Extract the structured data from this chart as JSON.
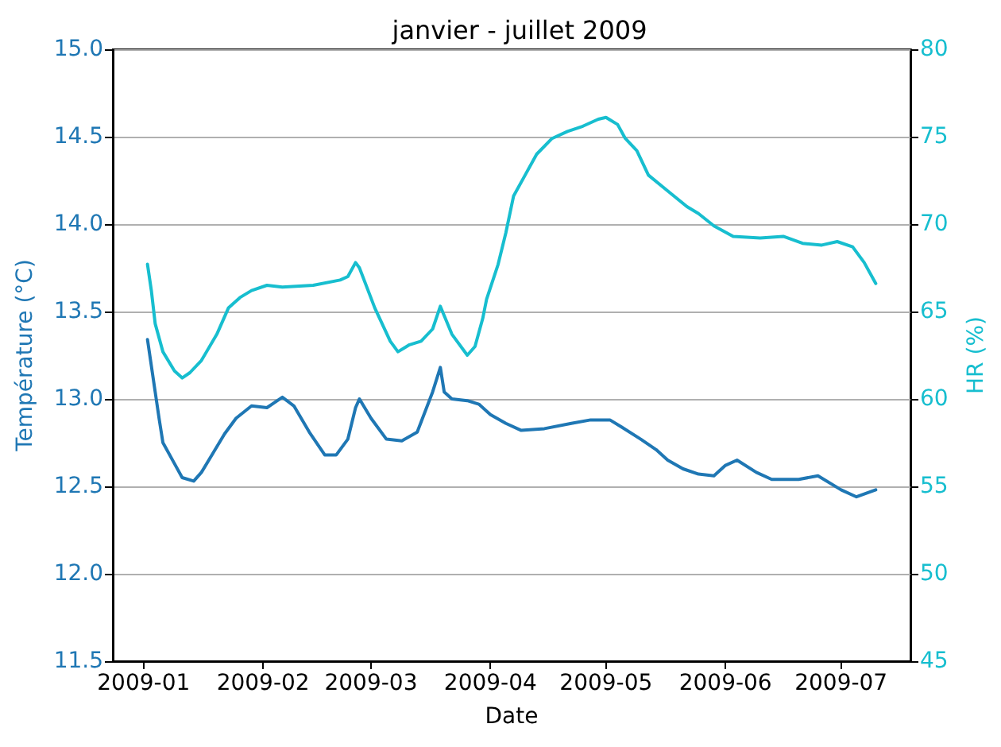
{
  "chart_data": {
    "type": "line",
    "title": "janvier - juillet 2009",
    "xlabel": "Date",
    "ylabel": "Température (°C)",
    "y2label": "HR (%)",
    "xlim": [
      "2008-12-24",
      "2009-07-19"
    ],
    "xticks": [
      "2009-01",
      "2009-02",
      "2009-03",
      "2009-04",
      "2009-05",
      "2009-06",
      "2009-07"
    ],
    "ylim": [
      11.5,
      15.0
    ],
    "yticks": [
      11.5,
      {
        "value": 12,
        "label": "12.0"
      },
      12.5,
      {
        "value": 13,
        "label": "13.0"
      },
      13.5,
      {
        "value": 14,
        "label": "14.0"
      },
      14.5,
      {
        "value": 15,
        "label": "15.0"
      }
    ],
    "y2lim": [
      45,
      80
    ],
    "y2ticks": [
      45,
      50,
      55,
      60,
      65,
      70,
      75,
      80
    ],
    "grid": "y",
    "marker": "none",
    "line_style": "solid",
    "series": [
      {
        "color": "#1f77b4",
        "x": [
          "2009-01-02",
          "2009-01-04",
          "2009-01-05",
          "2009-01-06",
          "2009-01-09",
          "2009-01-11",
          "2009-01-14",
          "2009-01-16",
          "2009-01-19",
          "2009-01-22",
          "2009-01-25",
          "2009-01-29",
          "2009-02-02",
          "2009-02-06",
          "2009-02-09",
          "2009-02-13",
          "2009-02-17",
          "2009-02-20",
          "2009-02-23",
          "2009-02-25",
          "2009-02-26",
          "2009-03-01",
          "2009-03-05",
          "2009-03-09",
          "2009-03-13",
          "2009-03-17",
          "2009-03-19",
          "2009-03-20",
          "2009-03-22",
          "2009-03-26",
          "2009-03-29",
          "2009-04-01",
          "2009-04-05",
          "2009-04-09",
          "2009-04-15",
          "2009-04-22",
          "2009-04-27",
          "2009-05-02",
          "2009-05-05",
          "2009-05-10",
          "2009-05-14",
          "2009-05-17",
          "2009-05-21",
          "2009-05-25",
          "2009-05-29",
          "2009-06-01",
          "2009-06-04",
          "2009-06-09",
          "2009-06-13",
          "2009-06-20",
          "2009-06-25",
          "2009-07-01",
          "2009-07-05",
          "2009-07-10"
        ],
        "values": [
          13.34,
          13.04,
          12.89,
          12.75,
          12.63,
          12.55,
          12.53,
          12.58,
          12.69,
          12.8,
          12.89,
          12.96,
          12.95,
          13.01,
          12.96,
          12.81,
          12.68,
          12.68,
          12.77,
          12.95,
          13.0,
          12.89,
          12.77,
          12.76,
          12.81,
          13.04,
          13.18,
          13.04,
          13.0,
          12.99,
          12.97,
          12.91,
          12.86,
          12.82,
          12.83,
          12.86,
          12.88,
          12.88,
          12.84,
          12.77,
          12.71,
          12.65,
          12.6,
          12.57,
          12.56,
          12.62,
          12.65,
          12.58,
          12.54,
          12.54,
          12.56,
          12.48,
          12.44,
          12.48
        ]
      },
      {
        "color": "#17becf",
        "axis": "y2",
        "x": [
          "2009-01-02",
          "2009-01-03",
          "2009-01-04",
          "2009-01-06",
          "2009-01-09",
          "2009-01-11",
          "2009-01-13",
          "2009-01-16",
          "2009-01-20",
          "2009-01-23",
          "2009-01-26",
          "2009-01-29",
          "2009-02-02",
          "2009-02-06",
          "2009-02-14",
          "2009-02-21",
          "2009-02-23",
          "2009-02-25",
          "2009-02-26",
          "2009-03-02",
          "2009-03-06",
          "2009-03-08",
          "2009-03-11",
          "2009-03-14",
          "2009-03-17",
          "2009-03-19",
          "2009-03-22",
          "2009-03-26",
          "2009-03-28",
          "2009-03-30",
          "2009-03-31",
          "2009-04-03",
          "2009-04-05",
          "2009-04-07",
          "2009-04-10",
          "2009-04-13",
          "2009-04-17",
          "2009-04-21",
          "2009-04-25",
          "2009-04-29",
          "2009-05-01",
          "2009-05-04",
          "2009-05-06",
          "2009-05-09",
          "2009-05-12",
          "2009-05-17",
          "2009-05-22",
          "2009-05-25",
          "2009-05-29",
          "2009-06-03",
          "2009-06-10",
          "2009-06-16",
          "2009-06-21",
          "2009-06-26",
          "2009-06-30",
          "2009-07-04",
          "2009-07-07",
          "2009-07-10"
        ],
        "values": [
          67.7,
          66.2,
          64.3,
          62.7,
          61.6,
          61.2,
          61.5,
          62.2,
          63.7,
          65.2,
          65.8,
          66.2,
          66.5,
          66.4,
          66.5,
          66.8,
          67.0,
          67.8,
          67.5,
          65.2,
          63.3,
          62.7,
          63.1,
          63.3,
          64.0,
          65.3,
          63.7,
          62.5,
          63.0,
          64.6,
          65.7,
          67.7,
          69.5,
          71.6,
          72.8,
          74.0,
          74.9,
          75.3,
          75.6,
          76.0,
          76.1,
          75.7,
          74.9,
          74.2,
          72.8,
          71.9,
          71.0,
          70.6,
          69.9,
          69.3,
          69.2,
          69.3,
          68.9,
          68.8,
          69.0,
          68.7,
          67.8,
          66.6
        ]
      }
    ]
  }
}
